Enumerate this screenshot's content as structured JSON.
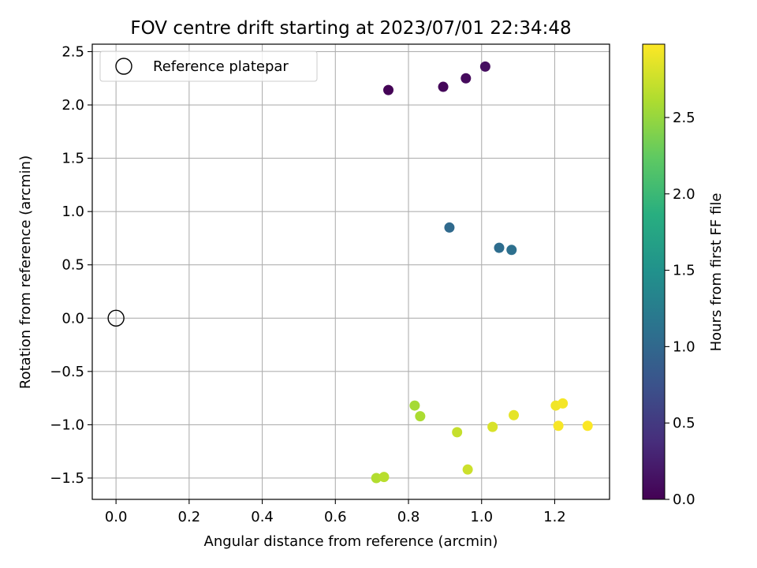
{
  "chart_data": {
    "type": "scatter",
    "title": "FOV centre drift starting at 2023/07/01 22:34:48",
    "xlabel": "Angular distance from reference (arcmin)",
    "ylabel": "Rotation from reference (arcmin)",
    "xlim": [
      -0.065,
      1.35
    ],
    "ylim": [
      -1.7,
      2.57
    ],
    "x_ticks": [
      "0.0",
      "0.2",
      "0.4",
      "0.6",
      "0.8",
      "1.0",
      "1.2"
    ],
    "y_ticks": [
      "−1.5",
      "−1.0",
      "−0.5",
      "0.0",
      "0.5",
      "1.0",
      "1.5",
      "2.0",
      "2.5"
    ],
    "grid": true,
    "legend_position": "top-left",
    "legend": [
      {
        "label": "Reference platepar",
        "marker": "open-circle"
      }
    ],
    "reference_point": {
      "x": 0.0,
      "y": 0.0
    },
    "colorbar": {
      "label": "Hours from first FF file",
      "range": [
        0.0,
        2.98
      ],
      "ticks": [
        "0.0",
        "0.5",
        "1.0",
        "1.5",
        "2.0",
        "2.5"
      ],
      "colormap": "viridis"
    },
    "points": [
      {
        "x": 0.745,
        "y": 2.14,
        "hours": 0.02
      },
      {
        "x": 0.895,
        "y": 2.17,
        "hours": 0.05
      },
      {
        "x": 0.957,
        "y": 2.25,
        "hours": 0.08
      },
      {
        "x": 1.01,
        "y": 2.36,
        "hours": 0.11
      },
      {
        "x": 0.912,
        "y": 0.85,
        "hours": 1.03
      },
      {
        "x": 1.048,
        "y": 0.66,
        "hours": 1.06
      },
      {
        "x": 1.082,
        "y": 0.64,
        "hours": 1.09
      },
      {
        "x": 0.817,
        "y": -0.82,
        "hours": 2.57
      },
      {
        "x": 0.832,
        "y": -0.92,
        "hours": 2.6
      },
      {
        "x": 0.712,
        "y": -1.5,
        "hours": 2.63
      },
      {
        "x": 0.733,
        "y": -1.49,
        "hours": 2.66
      },
      {
        "x": 0.933,
        "y": -1.07,
        "hours": 2.72
      },
      {
        "x": 0.962,
        "y": -1.42,
        "hours": 2.75
      },
      {
        "x": 1.03,
        "y": -1.02,
        "hours": 2.81
      },
      {
        "x": 1.088,
        "y": -0.91,
        "hours": 2.87
      },
      {
        "x": 1.203,
        "y": -0.82,
        "hours": 2.92
      },
      {
        "x": 1.222,
        "y": -0.8,
        "hours": 2.94
      },
      {
        "x": 1.21,
        "y": -1.01,
        "hours": 2.95
      },
      {
        "x": 1.29,
        "y": -1.01,
        "hours": 2.97
      }
    ]
  }
}
